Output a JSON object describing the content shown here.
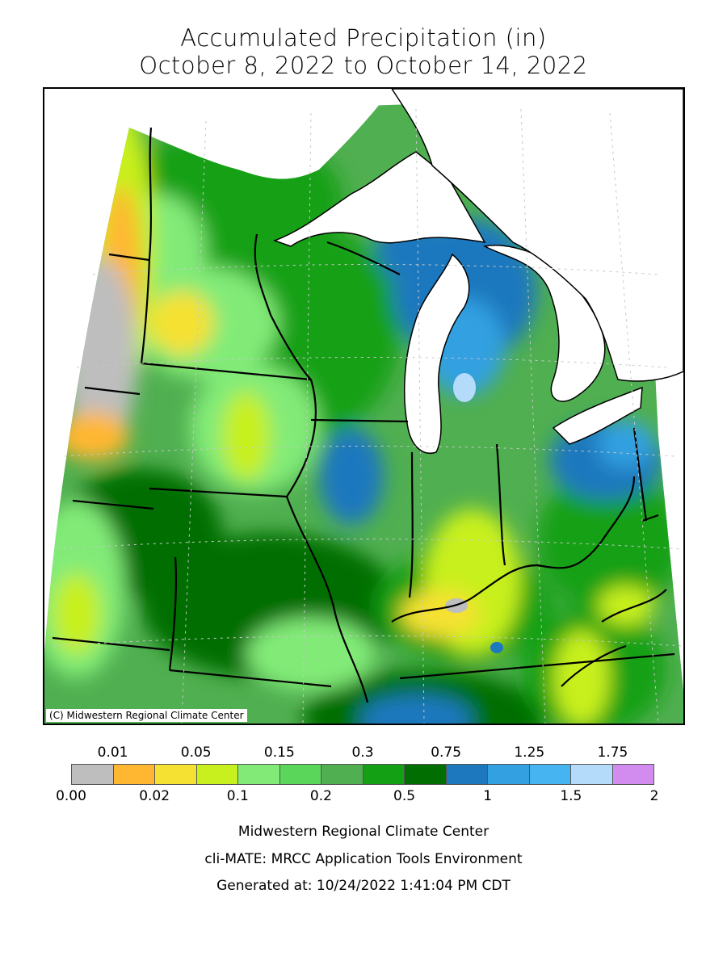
{
  "title": {
    "line1": "Accumulated Precipitation (in)",
    "line2": "October 8, 2022 to October 14, 2022"
  },
  "map": {
    "copyright": "(C) Midwestern Regional Climate Center",
    "water_color": "#ffffff",
    "border_color": "#000000",
    "grid_color": "#c8c8c8"
  },
  "legend": {
    "top_labels": [
      "0.01",
      "0.05",
      "0.15",
      "0.3",
      "0.75",
      "1.25",
      "1.75"
    ],
    "bottom_labels": [
      "0.00",
      "0.02",
      "0.1",
      "0.2",
      "0.5",
      "1",
      "1.5",
      "2"
    ],
    "colors": [
      "#bebebe",
      "#ffb732",
      "#f5e132",
      "#c8f01e",
      "#82eb78",
      "#5ad75a",
      "#50af50",
      "#14a014",
      "#006e00",
      "#1e78be",
      "#32a0e1",
      "#46b4f0",
      "#b4dcfa",
      "#d28cf0"
    ]
  },
  "footer": {
    "line1": "Midwestern Regional Climate Center",
    "line2": "cli-MATE: MRCC Application Tools Environment",
    "line3": "Generated at: 10/24/2022 1:41:04 PM CDT"
  }
}
